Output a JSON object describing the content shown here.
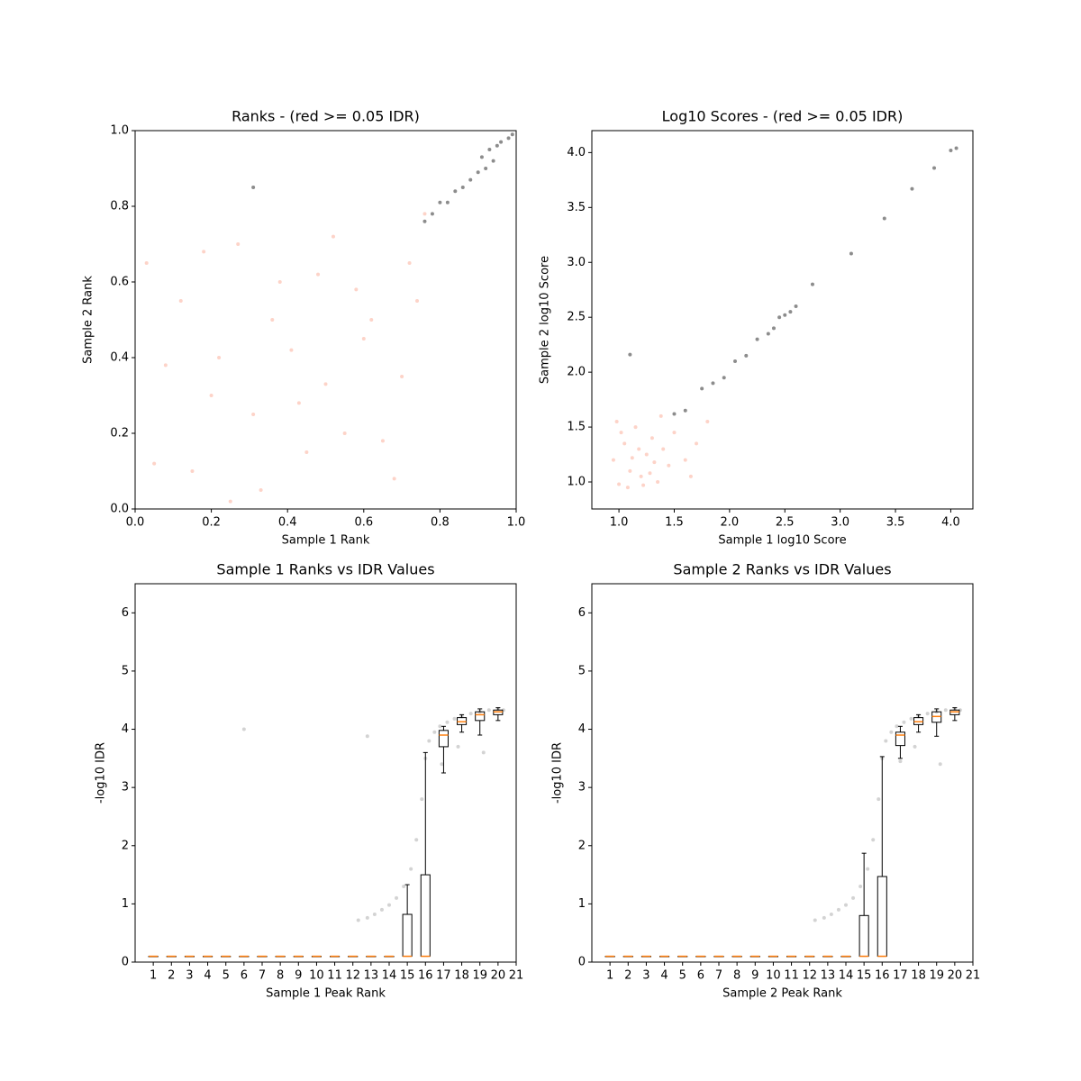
{
  "chart_data": [
    {
      "type": "scatter",
      "title": "Ranks - (red >= 0.05 IDR)",
      "xlabel": "Sample 1 Rank",
      "ylabel": "Sample 2 Rank",
      "xlim": [
        0,
        1
      ],
      "ylim": [
        0,
        1
      ],
      "xticks": [
        {
          "value": 0,
          "label": "0.0"
        },
        0.2,
        0.4,
        0.6,
        0.8,
        {
          "value": 1,
          "label": "1.0"
        }
      ],
      "yticks": [
        {
          "value": 0,
          "label": "0.0"
        },
        0.2,
        0.4,
        0.6,
        0.8,
        {
          "value": 1,
          "label": "1.0"
        }
      ],
      "series": [
        {
          "color": "#fa8060",
          "alpha": 0.35,
          "x": [
            0.05,
            0.12,
            0.2,
            0.27,
            0.33,
            0.41,
            0.48,
            0.55,
            0.62,
            0.7,
            0.76,
            0.03,
            0.15,
            0.22,
            0.31,
            0.38,
            0.45,
            0.52,
            0.6,
            0.68,
            0.74,
            0.08,
            0.18,
            0.25,
            0.36,
            0.43,
            0.5,
            0.58,
            0.65,
            0.72
          ],
          "y": [
            0.12,
            0.55,
            0.3,
            0.7,
            0.05,
            0.42,
            0.62,
            0.2,
            0.5,
            0.35,
            0.78,
            0.65,
            0.1,
            0.4,
            0.25,
            0.6,
            0.15,
            0.72,
            0.45,
            0.08,
            0.55,
            0.38,
            0.68,
            0.02,
            0.5,
            0.28,
            0.33,
            0.58,
            0.18,
            0.65
          ]
        },
        {
          "color": "#000000",
          "alpha": 0.45,
          "x": [
            0.76,
            0.78,
            0.8,
            0.82,
            0.84,
            0.86,
            0.88,
            0.9,
            0.91,
            0.92,
            0.93,
            0.94,
            0.95,
            0.96,
            0.98,
            0.99,
            0.31
          ],
          "y": [
            0.76,
            0.78,
            0.81,
            0.81,
            0.84,
            0.85,
            0.87,
            0.89,
            0.93,
            0.9,
            0.95,
            0.92,
            0.96,
            0.97,
            0.98,
            0.99,
            0.85
          ]
        }
      ]
    },
    {
      "type": "scatter",
      "title": "Log10 Scores - (red >= 0.05 IDR)",
      "xlabel": "Sample 1 log10 Score",
      "ylabel": "Sample 2 log10 Score",
      "xlim": [
        0.755,
        4.2
      ],
      "ylim": [
        0.754,
        4.2
      ],
      "xticks": [
        {
          "value": 1,
          "label": "1.0"
        },
        1.5,
        {
          "value": 2,
          "label": "2.0"
        },
        2.5,
        {
          "value": 3,
          "label": "3.0"
        },
        3.5,
        {
          "value": 4,
          "label": "4.0"
        }
      ],
      "yticks": [
        {
          "value": 1,
          "label": "1.0"
        },
        1.5,
        {
          "value": 2,
          "label": "2.0"
        },
        2.5,
        {
          "value": 3,
          "label": "3.0"
        },
        3.5,
        {
          "value": 4,
          "label": "4.0"
        }
      ],
      "series": [
        {
          "color": "#fa8060",
          "alpha": 0.35,
          "x": [
            0.95,
            1.0,
            1.05,
            1.1,
            1.15,
            1.2,
            1.25,
            1.3,
            1.35,
            1.4,
            1.45,
            1.5,
            1.6,
            1.7,
            1.8,
            0.98,
            1.08,
            1.18,
            1.28,
            1.38,
            1.02,
            1.12,
            1.22,
            1.32,
            1.65
          ],
          "y": [
            1.2,
            0.98,
            1.35,
            1.1,
            1.5,
            1.05,
            1.25,
            1.4,
            1.0,
            1.3,
            1.15,
            1.45,
            1.2,
            1.35,
            1.55,
            1.55,
            0.95,
            1.3,
            1.08,
            1.6,
            1.45,
            1.22,
            0.97,
            1.18,
            1.05
          ]
        },
        {
          "color": "#000000",
          "alpha": 0.45,
          "x": [
            1.5,
            1.6,
            1.75,
            1.85,
            1.95,
            2.05,
            2.15,
            2.25,
            2.35,
            2.4,
            2.45,
            2.5,
            2.55,
            2.6,
            2.75,
            3.1,
            3.4,
            3.65,
            3.85,
            4.0,
            4.05,
            1.1
          ],
          "y": [
            1.62,
            1.65,
            1.85,
            1.9,
            1.95,
            2.1,
            2.15,
            2.3,
            2.35,
            2.4,
            2.5,
            2.52,
            2.55,
            2.6,
            2.8,
            3.08,
            3.4,
            3.67,
            3.86,
            4.02,
            4.04,
            2.16
          ]
        }
      ]
    },
    {
      "type": "box",
      "title": "Sample 1 Ranks vs IDR Values",
      "xlabel": "Sample 1 Peak Rank",
      "ylabel": "-log10 IDR",
      "xlim": [
        0,
        21
      ],
      "ylim": [
        0,
        6.5
      ],
      "xticks": [
        1,
        2,
        3,
        4,
        5,
        6,
        7,
        8,
        9,
        10,
        11,
        12,
        13,
        14,
        15,
        16,
        17,
        18,
        19,
        20,
        21
      ],
      "yticks": [
        0,
        1,
        2,
        3,
        4,
        5,
        6
      ],
      "box_color": "#000000",
      "median_color": "#ff7f0e",
      "points": {
        "color": "#808080",
        "alpha": 0.35,
        "x": [
          12.3,
          12.8,
          13.2,
          13.6,
          14.0,
          14.4,
          14.8,
          15.2,
          15.5,
          15.8,
          16.0,
          16.2,
          16.5,
          16.8,
          17.2,
          17.6,
          18.0,
          18.5,
          19.0,
          19.5,
          20.0,
          20.3,
          16.9,
          17.8,
          19.2,
          12.8,
          6.0
        ],
        "y": [
          0.72,
          0.76,
          0.82,
          0.9,
          0.98,
          1.1,
          1.3,
          1.6,
          2.1,
          2.8,
          3.5,
          3.8,
          3.95,
          4.05,
          4.12,
          4.18,
          4.22,
          4.27,
          4.3,
          4.33,
          4.35,
          4.33,
          3.4,
          3.7,
          3.6,
          3.88,
          4.0
        ]
      },
      "boxes": [
        {
          "x": 1,
          "low": 0.1,
          "q1": 0.1,
          "median": 0.1,
          "q3": 0.1,
          "high": 0.1
        },
        {
          "x": 2,
          "low": 0.1,
          "q1": 0.1,
          "median": 0.1,
          "q3": 0.1,
          "high": 0.1
        },
        {
          "x": 3,
          "low": 0.1,
          "q1": 0.1,
          "median": 0.1,
          "q3": 0.1,
          "high": 0.1
        },
        {
          "x": 4,
          "low": 0.1,
          "q1": 0.1,
          "median": 0.1,
          "q3": 0.1,
          "high": 0.1
        },
        {
          "x": 5,
          "low": 0.1,
          "q1": 0.1,
          "median": 0.1,
          "q3": 0.1,
          "high": 0.1
        },
        {
          "x": 6,
          "low": 0.1,
          "q1": 0.1,
          "median": 0.1,
          "q3": 0.1,
          "high": 0.1
        },
        {
          "x": 7,
          "low": 0.1,
          "q1": 0.1,
          "median": 0.1,
          "q3": 0.1,
          "high": 0.1
        },
        {
          "x": 8,
          "low": 0.1,
          "q1": 0.1,
          "median": 0.1,
          "q3": 0.1,
          "high": 0.1
        },
        {
          "x": 9,
          "low": 0.1,
          "q1": 0.1,
          "median": 0.1,
          "q3": 0.1,
          "high": 0.1
        },
        {
          "x": 10,
          "low": 0.1,
          "q1": 0.1,
          "median": 0.1,
          "q3": 0.1,
          "high": 0.1
        },
        {
          "x": 11,
          "low": 0.1,
          "q1": 0.1,
          "median": 0.1,
          "q3": 0.1,
          "high": 0.1
        },
        {
          "x": 12,
          "low": 0.1,
          "q1": 0.1,
          "median": 0.1,
          "q3": 0.1,
          "high": 0.1
        },
        {
          "x": 13,
          "low": 0.1,
          "q1": 0.1,
          "median": 0.1,
          "q3": 0.1,
          "high": 0.1
        },
        {
          "x": 14,
          "low": 0.1,
          "q1": 0.1,
          "median": 0.1,
          "q3": 0.1,
          "high": 0.1
        },
        {
          "x": 15,
          "low": 0.1,
          "q1": 0.1,
          "median": 0.1,
          "q3": 0.82,
          "high": 1.33
        },
        {
          "x": 16,
          "low": 0.1,
          "q1": 0.1,
          "median": 0.1,
          "q3": 1.5,
          "high": 3.6
        },
        {
          "x": 17,
          "low": 3.25,
          "q1": 3.7,
          "median": 3.9,
          "q3": 3.98,
          "high": 4.05
        },
        {
          "x": 18,
          "low": 3.95,
          "q1": 4.08,
          "median": 4.13,
          "q3": 4.2,
          "high": 4.25
        },
        {
          "x": 19,
          "low": 3.9,
          "q1": 4.15,
          "median": 4.25,
          "q3": 4.3,
          "high": 4.35
        },
        {
          "x": 20,
          "low": 4.15,
          "q1": 4.25,
          "median": 4.3,
          "q3": 4.33,
          "high": 4.37
        }
      ]
    },
    {
      "type": "box",
      "title": "Sample 2 Ranks vs IDR Values",
      "xlabel": "Sample 2 Peak Rank",
      "ylabel": "-log10 IDR",
      "xlim": [
        0,
        21
      ],
      "ylim": [
        0,
        6.5
      ],
      "xticks": [
        1,
        2,
        3,
        4,
        5,
        6,
        7,
        8,
        9,
        10,
        11,
        12,
        13,
        14,
        15,
        16,
        17,
        18,
        19,
        20,
        21
      ],
      "yticks": [
        0,
        1,
        2,
        3,
        4,
        5,
        6
      ],
      "box_color": "#000000",
      "median_color": "#ff7f0e",
      "points": {
        "color": "#808080",
        "alpha": 0.35,
        "x": [
          12.3,
          12.8,
          13.2,
          13.6,
          14.0,
          14.4,
          14.8,
          15.2,
          15.5,
          15.8,
          16.0,
          16.2,
          16.5,
          16.8,
          17.2,
          17.6,
          18.0,
          18.5,
          19.0,
          19.5,
          20.0,
          20.3,
          17.0,
          17.8,
          19.2
        ],
        "y": [
          0.72,
          0.76,
          0.82,
          0.9,
          0.98,
          1.1,
          1.3,
          1.6,
          2.1,
          2.8,
          3.5,
          3.8,
          3.95,
          4.05,
          4.12,
          4.18,
          4.22,
          4.27,
          4.3,
          4.33,
          4.35,
          4.33,
          3.45,
          3.7,
          3.4
        ]
      },
      "boxes": [
        {
          "x": 1,
          "low": 0.1,
          "q1": 0.1,
          "median": 0.1,
          "q3": 0.1,
          "high": 0.1
        },
        {
          "x": 2,
          "low": 0.1,
          "q1": 0.1,
          "median": 0.1,
          "q3": 0.1,
          "high": 0.1
        },
        {
          "x": 3,
          "low": 0.1,
          "q1": 0.1,
          "median": 0.1,
          "q3": 0.1,
          "high": 0.1
        },
        {
          "x": 4,
          "low": 0.1,
          "q1": 0.1,
          "median": 0.1,
          "q3": 0.1,
          "high": 0.1
        },
        {
          "x": 5,
          "low": 0.1,
          "q1": 0.1,
          "median": 0.1,
          "q3": 0.1,
          "high": 0.1
        },
        {
          "x": 6,
          "low": 0.1,
          "q1": 0.1,
          "median": 0.1,
          "q3": 0.1,
          "high": 0.1
        },
        {
          "x": 7,
          "low": 0.1,
          "q1": 0.1,
          "median": 0.1,
          "q3": 0.1,
          "high": 0.1
        },
        {
          "x": 8,
          "low": 0.1,
          "q1": 0.1,
          "median": 0.1,
          "q3": 0.1,
          "high": 0.1
        },
        {
          "x": 9,
          "low": 0.1,
          "q1": 0.1,
          "median": 0.1,
          "q3": 0.1,
          "high": 0.1
        },
        {
          "x": 10,
          "low": 0.1,
          "q1": 0.1,
          "median": 0.1,
          "q3": 0.1,
          "high": 0.1
        },
        {
          "x": 11,
          "low": 0.1,
          "q1": 0.1,
          "median": 0.1,
          "q3": 0.1,
          "high": 0.1
        },
        {
          "x": 12,
          "low": 0.1,
          "q1": 0.1,
          "median": 0.1,
          "q3": 0.1,
          "high": 0.1
        },
        {
          "x": 13,
          "low": 0.1,
          "q1": 0.1,
          "median": 0.1,
          "q3": 0.1,
          "high": 0.1
        },
        {
          "x": 14,
          "low": 0.1,
          "q1": 0.1,
          "median": 0.1,
          "q3": 0.1,
          "high": 0.1
        },
        {
          "x": 15,
          "low": 0.1,
          "q1": 0.1,
          "median": 0.1,
          "q3": 0.8,
          "high": 1.87
        },
        {
          "x": 16,
          "low": 0.1,
          "q1": 0.1,
          "median": 0.1,
          "q3": 1.47,
          "high": 3.53
        },
        {
          "x": 17,
          "low": 3.5,
          "q1": 3.72,
          "median": 3.9,
          "q3": 3.95,
          "high": 4.05
        },
        {
          "x": 18,
          "low": 3.95,
          "q1": 4.08,
          "median": 4.13,
          "q3": 4.2,
          "high": 4.25
        },
        {
          "x": 19,
          "low": 3.88,
          "q1": 4.12,
          "median": 4.22,
          "q3": 4.3,
          "high": 4.35
        },
        {
          "x": 20,
          "low": 4.15,
          "q1": 4.25,
          "median": 4.3,
          "q3": 4.33,
          "high": 4.37
        }
      ]
    }
  ]
}
